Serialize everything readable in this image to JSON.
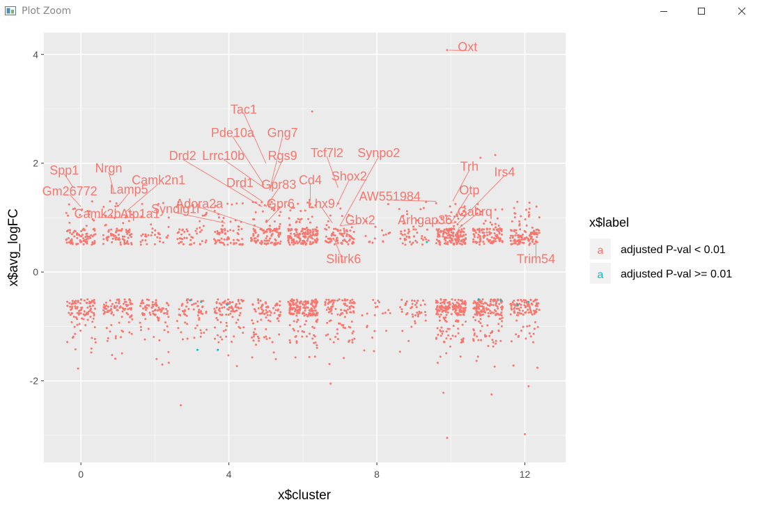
{
  "window": {
    "title": "Plot Zoom"
  },
  "chart_data": {
    "type": "scatter",
    "title": "",
    "xlabel": "x$cluster",
    "ylabel": "x$avg_logFC",
    "xlim": [
      -1,
      13.1
    ],
    "ylim": [
      -3.5,
      4.4
    ],
    "x_ticks": [
      0,
      4,
      8,
      12
    ],
    "y_ticks": [
      -2,
      0,
      2,
      4
    ],
    "x_tick_labels": [
      "0",
      "4",
      "8",
      "12"
    ],
    "y_tick_labels": [
      "-2",
      "0",
      "2",
      "4"
    ],
    "grid": true,
    "legend": {
      "title": "x$label",
      "position": "right",
      "entries": [
        {
          "label": "adjusted P-val < 0.01",
          "color": "#F8766D",
          "key": "a"
        },
        {
          "label": "adjusted P-val >= 0.01",
          "color": "#00BFC4",
          "key": "a"
        }
      ]
    },
    "clusters": [
      0,
      1,
      2,
      3,
      4,
      5,
      6,
      7,
      8,
      9,
      10,
      11,
      12
    ],
    "point_counts": {
      "up": [
        90,
        80,
        35,
        45,
        70,
        120,
        150,
        80,
        15,
        45,
        160,
        110,
        110
      ],
      "down": [
        100,
        90,
        80,
        60,
        90,
        80,
        180,
        100,
        20,
        40,
        180,
        160,
        100
      ]
    },
    "outliers": [
      {
        "x": 9.9,
        "y": 4.08
      },
      {
        "x": 6.25,
        "y": 2.95
      },
      {
        "x": 10.8,
        "y": 2.1
      },
      {
        "x": 11.2,
        "y": 2.15
      },
      {
        "x": 9.8,
        "y": -2.22
      },
      {
        "x": 9.9,
        "y": -3.05
      },
      {
        "x": 12.0,
        "y": -2.98
      },
      {
        "x": 2.7,
        "y": -2.45
      },
      {
        "x": 6.75,
        "y": -2.05
      },
      {
        "x": 11.1,
        "y": -2.25
      },
      {
        "x": 12.1,
        "y": -2.1
      },
      {
        "x": 2.2,
        "y": -1.7
      }
    ],
    "nonsig_points": [
      {
        "x": 3.15,
        "y": -1.43
      },
      {
        "x": 3.7,
        "y": -1.43
      },
      {
        "x": 2.95,
        "y": -0.52
      },
      {
        "x": 3.25,
        "y": -0.55
      },
      {
        "x": 10.75,
        "y": -0.5
      },
      {
        "x": 11.35,
        "y": -0.52
      },
      {
        "x": 11.8,
        "y": -0.6
      },
      {
        "x": 12.1,
        "y": -0.55
      },
      {
        "x": 9.35,
        "y": 0.55
      },
      {
        "x": 3.95,
        "y": -0.6
      }
    ],
    "gene_labels": [
      {
        "text": "Oxt",
        "x": 10.45,
        "y": 4.15,
        "px": 9.95,
        "py": 4.08
      },
      {
        "text": "Tac1",
        "x": 4.4,
        "y": 3.0,
        "px": 5.0,
        "py": 2.0
      },
      {
        "text": "Pde10a",
        "x": 4.1,
        "y": 2.57,
        "px": 4.95,
        "py": 1.6
      },
      {
        "text": "Gng7",
        "x": 5.45,
        "y": 2.57,
        "px": 5.1,
        "py": 1.5
      },
      {
        "text": "Drd2",
        "x": 2.75,
        "y": 2.15,
        "px": 4.9,
        "py": 1.2
      },
      {
        "text": "Lrrc10b",
        "x": 3.85,
        "y": 2.15,
        "px": 4.95,
        "py": 1.55
      },
      {
        "text": "Rgs9",
        "x": 5.45,
        "y": 2.15,
        "px": 5.1,
        "py": 1.5
      },
      {
        "text": "Tcf7l2",
        "x": 6.65,
        "y": 2.2,
        "px": 6.95,
        "py": 1.55
      },
      {
        "text": "Synpo2",
        "x": 8.05,
        "y": 2.2,
        "px": 7.0,
        "py": 0.85
      },
      {
        "text": "Spp1",
        "x": -0.45,
        "y": 1.88,
        "px": -0.2,
        "py": 1.55
      },
      {
        "text": "Nrgn",
        "x": 0.75,
        "y": 1.92,
        "px": 0.9,
        "py": 1.45
      },
      {
        "text": "Trh",
        "x": 10.5,
        "y": 1.95,
        "px": 10.05,
        "py": 1.3
      },
      {
        "text": "Irs4",
        "x": 11.45,
        "y": 1.85,
        "px": 10.2,
        "py": 0.9
      },
      {
        "text": "Drd1",
        "x": 4.3,
        "y": 1.65,
        "px": 4.9,
        "py": 1.3
      },
      {
        "text": "Gpr83",
        "x": 5.35,
        "y": 1.62,
        "px": 5.0,
        "py": 1.2
      },
      {
        "text": "Cd4",
        "x": 6.2,
        "y": 1.7,
        "px": 6.2,
        "py": 1.3
      },
      {
        "text": "Shox2",
        "x": 7.25,
        "y": 1.77,
        "px": 6.9,
        "py": 1.2
      },
      {
        "text": "Camk2n1",
        "x": 2.1,
        "y": 1.7,
        "px": 1.2,
        "py": 1.1
      },
      {
        "text": "Gm26772",
        "x": -0.3,
        "y": 1.5,
        "px": 0.0,
        "py": 1.2
      },
      {
        "text": "Lamp5",
        "x": 1.3,
        "y": 1.53,
        "px": 1.0,
        "py": 1.2
      },
      {
        "text": "Otp",
        "x": 10.5,
        "y": 1.52,
        "px": 10.0,
        "py": 0.9
      },
      {
        "text": "AW551984",
        "x": 8.35,
        "y": 1.4,
        "px": 9.6,
        "py": 1.3
      },
      {
        "text": "Adora2a",
        "x": 3.2,
        "y": 1.27,
        "px": 4.9,
        "py": 0.8
      },
      {
        "text": "Gpr6",
        "x": 5.4,
        "y": 1.27,
        "px": 5.0,
        "py": 0.9
      },
      {
        "text": "Lhx9",
        "x": 6.5,
        "y": 1.27,
        "px": 6.8,
        "py": 0.9
      },
      {
        "text": "Syndig1l",
        "x": 2.55,
        "y": 1.17,
        "px": 3.9,
        "py": 0.9
      },
      {
        "text": "Camk2b",
        "x": 0.45,
        "y": 1.08,
        "px": 1.1,
        "py": 1.0
      },
      {
        "text": "Atp1a1",
        "x": 1.6,
        "y": 1.08,
        "px": 1.1,
        "py": 1.0
      },
      {
        "text": "Gabrq",
        "x": 10.65,
        "y": 1.12,
        "px": 10.2,
        "py": 0.8
      },
      {
        "text": "Arhgap36",
        "x": 9.3,
        "y": 0.97,
        "px": 10.1,
        "py": 0.9
      },
      {
        "text": "Gbx2",
        "x": 7.55,
        "y": 0.97,
        "px": 7.0,
        "py": 0.85
      },
      {
        "text": "Slitrk6",
        "x": 7.1,
        "y": 0.25,
        "px": 6.85,
        "py": 0.6
      },
      {
        "text": "Trim54",
        "x": 12.3,
        "y": 0.25,
        "px": 12.3,
        "py": 0.6
      }
    ]
  }
}
